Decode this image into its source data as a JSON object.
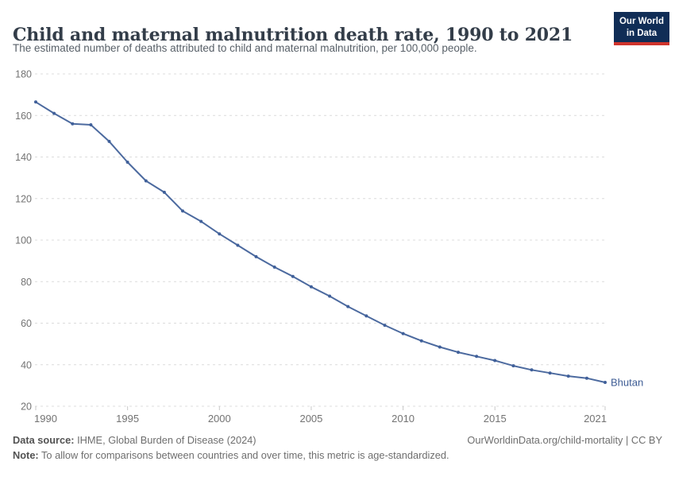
{
  "header": {
    "title": "Child and maternal malnutrition death rate, 1990 to 2021",
    "subtitle": "The estimated number of deaths attributed to child and maternal malnutrition, per 100,000 people.",
    "logo": {
      "line1": "Our World",
      "line2": "in Data"
    }
  },
  "chart_data": {
    "type": "line",
    "title": "Child and maternal malnutrition death rate, 1990 to 2021",
    "xlabel": "",
    "ylabel": "",
    "ylim": [
      20,
      180
    ],
    "xlim": [
      1990,
      2021
    ],
    "yticks": [
      20,
      40,
      60,
      80,
      100,
      120,
      140,
      160,
      180
    ],
    "xticks": [
      1990,
      1995,
      2000,
      2005,
      2010,
      2015,
      2021
    ],
    "grid": "horizontal-dashed",
    "legend_position": "end-of-line",
    "series": [
      {
        "name": "Bhutan",
        "x": [
          1990,
          1991,
          1992,
          1993,
          1994,
          1995,
          1996,
          1997,
          1998,
          1999,
          2000,
          2001,
          2002,
          2003,
          2004,
          2005,
          2006,
          2007,
          2008,
          2009,
          2010,
          2011,
          2012,
          2013,
          2014,
          2015,
          2016,
          2017,
          2018,
          2019,
          2020,
          2021
        ],
        "values": [
          166.5,
          161,
          156,
          155.5,
          147.5,
          137.5,
          128.5,
          123,
          114,
          109,
          103,
          97.5,
          92,
          87,
          82.5,
          77.5,
          73,
          68,
          63.5,
          59,
          55,
          51.5,
          48.5,
          46,
          44,
          42,
          39.5,
          37.5,
          36,
          34.5,
          33.5,
          31.5
        ]
      }
    ]
  },
  "footer": {
    "datasource_label": "Data source:",
    "datasource_text": " IHME, Global Burden of Disease (2024)",
    "link_text": "OurWorldinData.org/child-mortality | CC BY",
    "note_label": "Note:",
    "note_text": " To allow for comparisons between countries and over time, this metric is age-standardized."
  },
  "colors": {
    "line": "#4c6a9f",
    "marker": "#40609a",
    "end_label": "#3d5c94",
    "grid": "#dcdcdc",
    "tick": "#c9c9c9",
    "axis_text": "#737373",
    "logo_navy": "#102d56",
    "logo_red": "#cf342c"
  }
}
